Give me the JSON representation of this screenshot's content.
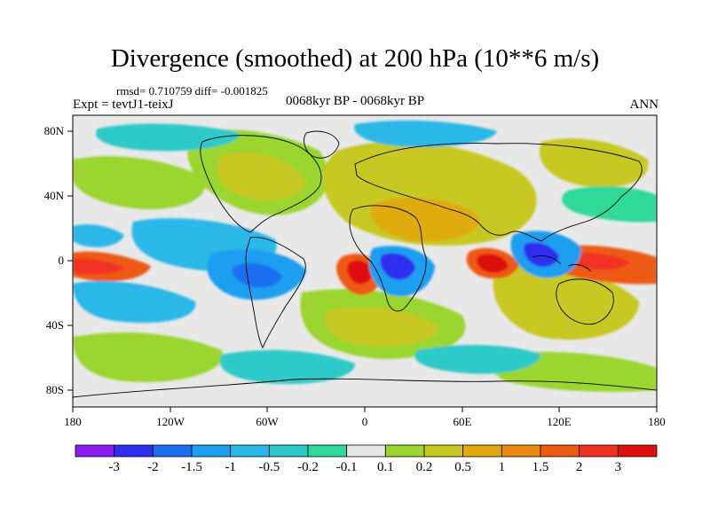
{
  "title": "Divergence (smoothed) at 200 hPa (10**6 m/s)",
  "stats": "rmsd= 0.710759 diff= -0.001825",
  "experiment": "Expt = tevtJ1-teixJ",
  "period": "0068kyr BP - 0068kyr BP",
  "season": "ANN",
  "lat_labels": [
    "80N",
    "40N",
    "0",
    "40S",
    "80S"
  ],
  "lon_labels": [
    "180",
    "120W",
    "60W",
    "0",
    "60E",
    "120E",
    "180"
  ],
  "colorbar": {
    "labels": [
      "-3",
      "-2",
      "-1.5",
      "-1",
      "-0.5",
      "-0.2",
      "-0.1",
      "0.1",
      "0.2",
      "0.5",
      "1",
      "1.5",
      "2",
      "3"
    ],
    "colors": [
      "#8a1cf0",
      "#2d2ef0",
      "#1b6ef0",
      "#1c9ff0",
      "#2ab8e8",
      "#2ec9c9",
      "#2fd99a",
      "#e8e8e8",
      "#9ad62e",
      "#c8c820",
      "#e0ac10",
      "#ec8a10",
      "#ee5a12",
      "#f23020",
      "#e01010"
    ]
  },
  "colors": {
    "background": "#e8e8e8",
    "frame": "#000000"
  }
}
